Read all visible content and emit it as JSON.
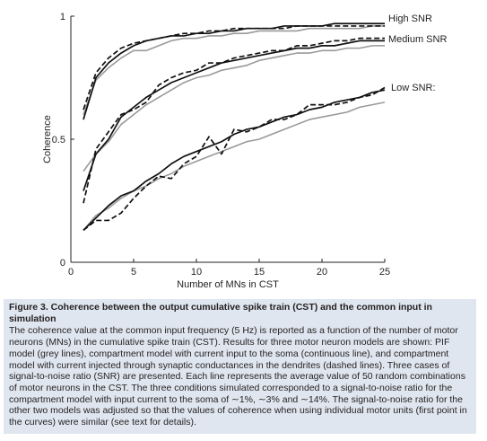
{
  "chart_data": {
    "type": "line",
    "xlabel": "Number of MNs in CST",
    "ylabel": "Coherence",
    "xlim": [
      0,
      25
    ],
    "ylim": [
      0,
      1
    ],
    "x_ticks": [
      0,
      5,
      10,
      15,
      20,
      25
    ],
    "y_ticks": [
      0,
      0.5,
      1
    ],
    "x_tick_labels": [
      "0",
      "5",
      "10",
      "15",
      "20",
      "25"
    ],
    "y_tick_labels": [
      "0",
      "0.5",
      "1"
    ],
    "grid": false,
    "annotations": [
      "High SNR",
      "Medium SNR",
      "Low SNR:"
    ],
    "series_styles": {
      "pif": {
        "color": "#9a9a9a",
        "dash": ""
      },
      "soma": {
        "color": "#111111",
        "dash": ""
      },
      "dendrite": {
        "color": "#111111",
        "dash": "6,3"
      }
    },
    "series": [
      {
        "group": "High SNR",
        "model": "pif",
        "x": [
          1,
          2,
          3,
          4,
          5,
          6,
          7,
          8,
          9,
          10,
          11,
          12,
          13,
          14,
          15,
          16,
          17,
          18,
          19,
          20,
          21,
          22,
          23,
          24,
          25
        ],
        "values": [
          0.6,
          0.74,
          0.79,
          0.83,
          0.86,
          0.86,
          0.88,
          0.9,
          0.91,
          0.91,
          0.92,
          0.92,
          0.93,
          0.93,
          0.94,
          0.94,
          0.94,
          0.94,
          0.95,
          0.95,
          0.95,
          0.95,
          0.95,
          0.96,
          0.96
        ]
      },
      {
        "group": "High SNR",
        "model": "soma",
        "x": [
          1,
          2,
          3,
          4,
          5,
          6,
          7,
          8,
          9,
          10,
          11,
          12,
          13,
          14,
          15,
          16,
          17,
          18,
          19,
          20,
          21,
          22,
          23,
          24,
          25
        ],
        "values": [
          0.58,
          0.75,
          0.81,
          0.85,
          0.88,
          0.9,
          0.91,
          0.92,
          0.92,
          0.93,
          0.93,
          0.94,
          0.94,
          0.95,
          0.95,
          0.95,
          0.96,
          0.96,
          0.96,
          0.96,
          0.97,
          0.97,
          0.97,
          0.97,
          0.97
        ]
      },
      {
        "group": "High SNR",
        "model": "dendrite",
        "x": [
          1,
          2,
          3,
          4,
          5,
          6,
          7,
          8,
          9,
          10,
          11,
          12,
          13,
          14,
          15,
          16,
          17,
          18,
          19,
          20,
          21,
          22,
          23,
          24,
          25
        ],
        "values": [
          0.62,
          0.77,
          0.83,
          0.87,
          0.89,
          0.9,
          0.91,
          0.92,
          0.93,
          0.93,
          0.94,
          0.94,
          0.95,
          0.95,
          0.95,
          0.95,
          0.95,
          0.96,
          0.96,
          0.96,
          0.96,
          0.96,
          0.96,
          0.96,
          0.96
        ]
      },
      {
        "group": "Medium SNR",
        "model": "pif",
        "x": [
          1,
          2,
          3,
          4,
          5,
          6,
          7,
          8,
          9,
          10,
          11,
          12,
          13,
          14,
          15,
          16,
          17,
          18,
          19,
          20,
          21,
          22,
          23,
          24,
          25
        ],
        "values": [
          0.37,
          0.44,
          0.49,
          0.56,
          0.6,
          0.64,
          0.67,
          0.7,
          0.73,
          0.75,
          0.76,
          0.78,
          0.79,
          0.8,
          0.82,
          0.83,
          0.84,
          0.85,
          0.85,
          0.86,
          0.86,
          0.87,
          0.87,
          0.88,
          0.88
        ]
      },
      {
        "group": "Medium SNR",
        "model": "soma",
        "x": [
          1,
          2,
          3,
          4,
          5,
          6,
          7,
          8,
          9,
          10,
          11,
          12,
          13,
          14,
          15,
          16,
          17,
          18,
          19,
          20,
          21,
          22,
          23,
          24,
          25
        ],
        "values": [
          0.29,
          0.44,
          0.5,
          0.59,
          0.63,
          0.67,
          0.7,
          0.73,
          0.75,
          0.77,
          0.79,
          0.81,
          0.82,
          0.83,
          0.84,
          0.85,
          0.86,
          0.87,
          0.87,
          0.88,
          0.88,
          0.89,
          0.9,
          0.9,
          0.9
        ]
      },
      {
        "group": "Medium SNR",
        "model": "dendrite",
        "x": [
          1,
          2,
          3,
          4,
          5,
          6,
          7,
          8,
          9,
          10,
          11,
          12,
          13,
          14,
          15,
          16,
          17,
          18,
          19,
          20,
          21,
          22,
          23,
          24,
          25
        ],
        "values": [
          0.24,
          0.46,
          0.53,
          0.6,
          0.62,
          0.65,
          0.72,
          0.75,
          0.77,
          0.78,
          0.81,
          0.81,
          0.83,
          0.84,
          0.85,
          0.86,
          0.86,
          0.88,
          0.88,
          0.89,
          0.9,
          0.9,
          0.91,
          0.91,
          0.91
        ]
      },
      {
        "group": "Low SNR",
        "model": "pif",
        "x": [
          1,
          2,
          3,
          4,
          5,
          6,
          7,
          8,
          9,
          10,
          11,
          12,
          13,
          14,
          15,
          16,
          17,
          18,
          19,
          20,
          21,
          22,
          23,
          24,
          25
        ],
        "values": [
          0.13,
          0.19,
          0.22,
          0.26,
          0.29,
          0.31,
          0.34,
          0.36,
          0.39,
          0.41,
          0.43,
          0.45,
          0.47,
          0.49,
          0.5,
          0.52,
          0.54,
          0.56,
          0.58,
          0.59,
          0.6,
          0.61,
          0.63,
          0.64,
          0.65
        ]
      },
      {
        "group": "Low SNR",
        "model": "soma",
        "x": [
          1,
          2,
          3,
          4,
          5,
          6,
          7,
          8,
          9,
          10,
          11,
          12,
          13,
          14,
          15,
          16,
          17,
          18,
          19,
          20,
          21,
          22,
          23,
          24,
          25
        ],
        "values": [
          0.13,
          0.18,
          0.23,
          0.27,
          0.29,
          0.33,
          0.36,
          0.4,
          0.43,
          0.45,
          0.47,
          0.49,
          0.52,
          0.54,
          0.55,
          0.57,
          0.59,
          0.6,
          0.62,
          0.63,
          0.65,
          0.66,
          0.67,
          0.69,
          0.7
        ]
      },
      {
        "group": "Low SNR",
        "model": "dendrite",
        "x": [
          1,
          2,
          3,
          4,
          5,
          6,
          7,
          8,
          9,
          10,
          11,
          12,
          13,
          14,
          15,
          16,
          17,
          18,
          19,
          20,
          21,
          22,
          23,
          24,
          25
        ],
        "values": [
          0.13,
          0.17,
          0.17,
          0.2,
          0.26,
          0.31,
          0.35,
          0.34,
          0.4,
          0.43,
          0.51,
          0.44,
          0.54,
          0.53,
          0.55,
          0.58,
          0.58,
          0.6,
          0.64,
          0.64,
          0.64,
          0.65,
          0.67,
          0.68,
          0.71
        ]
      }
    ]
  },
  "caption": {
    "title": "Figure 3. Coherence between the output cumulative spike train (CST) and the common input in simulation",
    "body": "The coherence value at the common input frequency (5 Hz) is reported as a function of the number of motor neurons (MNs) in the cumulative spike train (CST). Results for three motor neuron models are shown: PIF model (grey lines), compartment model with current input to the soma (continuous line), and compartment model with current injected through synaptic conductances in the dendrites (dashed lines). Three cases of signal-to-noise ratio (SNR) are presented. Each line represents the average value of 50 random combinations of motor neurons in the CST. The three conditions simulated corresponded to a signal-to-noise ratio for the compartment model with input current to the soma of ∼1%, ∼3% and ∼14%. The signal-to-noise ratio for the other two models was adjusted so that the values of coherence when using individual motor units (first point in the curves) were similar (see text for details)."
  }
}
